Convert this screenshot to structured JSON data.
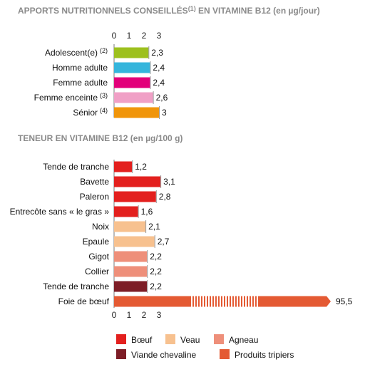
{
  "chart_data": [
    {
      "type": "bar",
      "orientation": "horizontal",
      "title": "APPORTS NUTRITIONNELS CONSEILLÉS",
      "title_note": "(1)",
      "title_suffix": " EN VITAMINE B12 (en µg/jour)",
      "x_ticks": [
        "0",
        "1",
        "2",
        "3"
      ],
      "xlim": [
        0,
        3
      ],
      "categories": [
        "Adolescent(e)",
        "Homme adulte",
        "Femme adulte",
        "Femme enceinte",
        "Sénior"
      ],
      "notes": [
        "(2)",
        "",
        "",
        "(3)",
        "(4)"
      ],
      "values": [
        2.3,
        2.4,
        2.4,
        2.6,
        3
      ],
      "value_labels": [
        "2,3",
        "2,4",
        "2,4",
        "2,6",
        "3"
      ],
      "colors": [
        "#9dc01e",
        "#35b5dc",
        "#e2007a",
        "#f0a0c6",
        "#f0950a"
      ]
    },
    {
      "type": "bar",
      "orientation": "horizontal",
      "title": "TENEUR EN VITAMINE B12 (en µg/100 g)",
      "x_ticks": [
        "0",
        "1",
        "2",
        "3"
      ],
      "xlim": [
        0,
        3
      ],
      "axis_break": true,
      "categories": [
        "Tende de tranche",
        "Bavette",
        "Paleron",
        "Entrecôte sans « le gras »",
        "Noix",
        "Epaule",
        "Gigot",
        "Collier",
        "Tende de tranche",
        "Foie de bœuf"
      ],
      "values": [
        1.2,
        3.1,
        2.8,
        1.6,
        2.1,
        2.7,
        2.2,
        2.2,
        2.2,
        95.5
      ],
      "value_labels": [
        "1,2",
        "3,1",
        "2,8",
        "1,6",
        "2,1",
        "2,7",
        "2,2",
        "2,2",
        "2,2",
        "95,5"
      ],
      "groups": [
        "Bœuf",
        "Bœuf",
        "Bœuf",
        "Bœuf",
        "Veau",
        "Veau",
        "Agneau",
        "Agneau",
        "Viande chevaline",
        "Produits tripiers"
      ],
      "legend": [
        {
          "name": "Bœuf",
          "color": "#e3201e"
        },
        {
          "name": "Veau",
          "color": "#f7c18f"
        },
        {
          "name": "Agneau",
          "color": "#ee8f7a"
        },
        {
          "name": "Viande chevaline",
          "color": "#7d1d26"
        },
        {
          "name": "Produits tripiers",
          "color": "#e45a33"
        }
      ],
      "legend_placement": "bottom"
    }
  ]
}
